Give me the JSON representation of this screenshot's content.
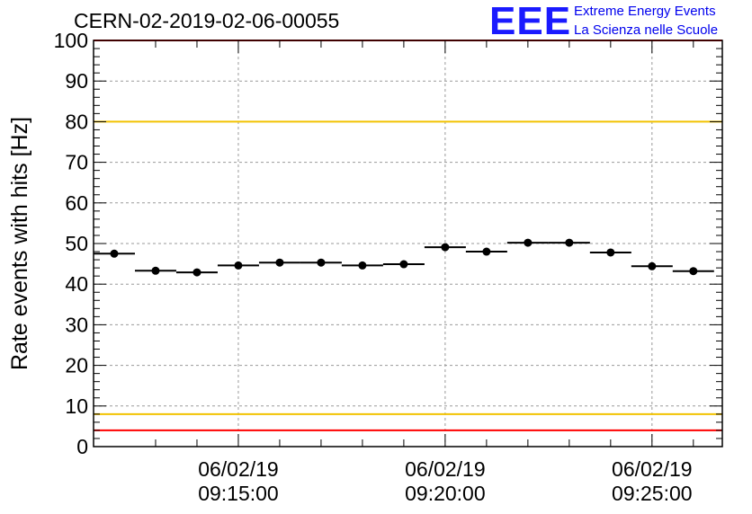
{
  "header": {
    "run_title": "CERN-02-2019-02-06-00055",
    "logo_mark": "EEE",
    "logo_line1": "Extreme Energy Events",
    "logo_line2": "La Scienza nelle Scuole"
  },
  "colors": {
    "accent_logo": "#1a1aff",
    "upper_limit": "#ff0000",
    "lower_limit": "#ff0000",
    "warn_line": "#f2c200",
    "markers": "#000000"
  },
  "chart_data": {
    "type": "scatter",
    "title": "CERN-02-2019-02-06-00055",
    "ylabel": "Rate events with hits [Hz]",
    "xlabel": "",
    "ylim": [
      0,
      100
    ],
    "yticks": [
      "0",
      "10",
      "20",
      "30",
      "40",
      "50",
      "60",
      "70",
      "80",
      "90",
      "100"
    ],
    "xlim_minutes": [
      0,
      15.2
    ],
    "xticks": [
      {
        "t": 3.5,
        "line1": "06/02/19",
        "line2": "09:15:00"
      },
      {
        "t": 8.5,
        "line1": "06/02/19",
        "line2": "09:20:00"
      },
      {
        "t": 13.5,
        "line1": "06/02/19",
        "line2": "09:25:00"
      }
    ],
    "grid": true,
    "bin_width_minutes": 1,
    "series": [
      {
        "x": [
          0.5,
          1.5,
          2.5,
          3.5,
          4.5,
          5.5,
          6.5,
          7.5,
          8.5,
          9.5,
          10.5,
          11.5,
          12.5,
          13.5,
          14.5
        ],
        "values": [
          47.5,
          43.3,
          42.9,
          44.6,
          45.3,
          45.3,
          44.6,
          44.9,
          49.1,
          48.0,
          50.2,
          50.2,
          47.8,
          44.4,
          43.2
        ]
      }
    ],
    "reference_lines": [
      {
        "y": 100,
        "color": "#ff0000"
      },
      {
        "y": 80,
        "color": "#f2c200"
      },
      {
        "y": 8,
        "color": "#f2c200"
      },
      {
        "y": 4,
        "color": "#ff0000"
      }
    ]
  }
}
